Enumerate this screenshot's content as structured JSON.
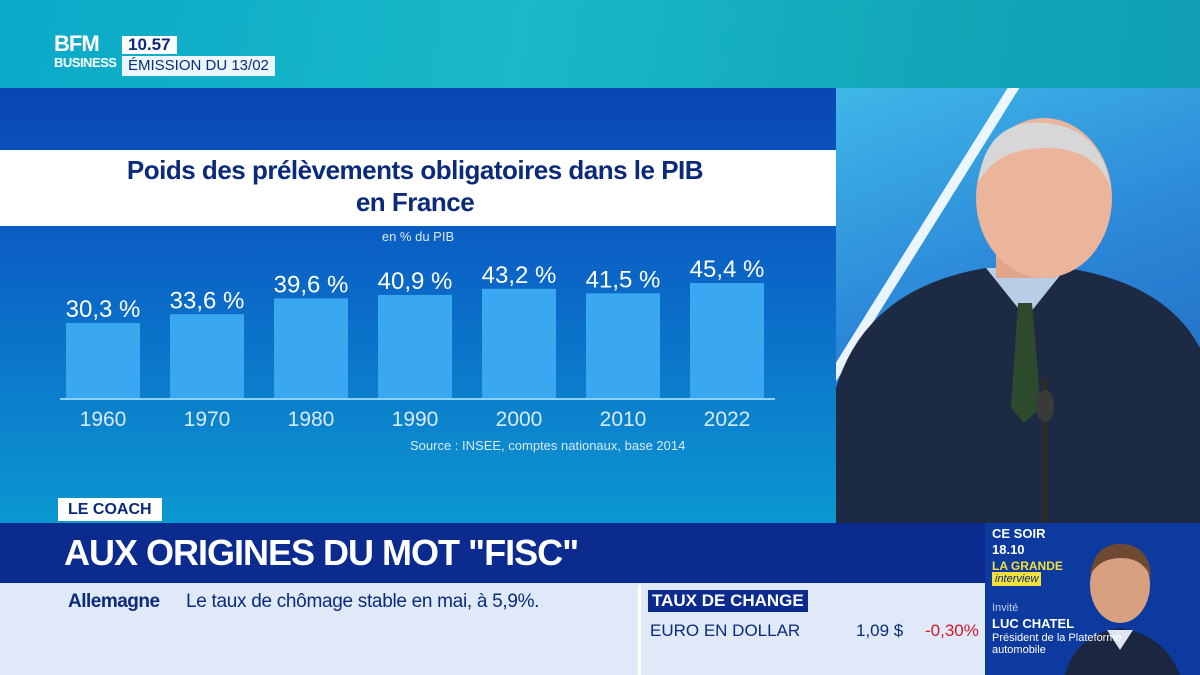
{
  "channel": {
    "logo_line1": "BFM",
    "logo_line2": "BUSINESS",
    "time": "10.57",
    "emission": "ÉMISSION DU 13/02"
  },
  "chart_data": {
    "type": "bar",
    "title_line1": "Poids des prélèvements obligatoires dans le PIB",
    "title_line2": "en France",
    "subtitle": "en % du PIB",
    "categories": [
      "1960",
      "1970",
      "1980",
      "1990",
      "2000",
      "2010",
      "2022"
    ],
    "values": [
      30.3,
      33.6,
      39.6,
      40.9,
      43.2,
      41.5,
      45.4
    ],
    "value_labels": [
      "30,3 %",
      "33,6 %",
      "39,6 %",
      "40,9 %",
      "43,2 %",
      "41,5 %",
      "45,4 %"
    ],
    "source": "Source : INSEE, comptes nationaux, base 2014",
    "bar_color": "#3aa8f0",
    "grid": false
  },
  "lower_third": {
    "tag": "LE COACH",
    "headline": "AUX ORIGINES DU MOT \"FISC\""
  },
  "ticker": {
    "topic": "Allemagne",
    "text": "Le taux de chômage stable en mai, à 5,9%.",
    "fx_label": "TAUX DE CHANGE",
    "fx_pair": "EURO EN DOLLAR",
    "fx_value": "1,09 $",
    "fx_change": "-0,30%",
    "fx_change_color": "#d6172a"
  },
  "promo": {
    "when": "CE SOIR",
    "time": "18.10",
    "show_line1": "LA GRANDE",
    "show_line2": "interview",
    "guest_label": "Invité",
    "guest_name": "LUC CHATEL",
    "guest_role": "Président de la Plateforme automobile"
  }
}
